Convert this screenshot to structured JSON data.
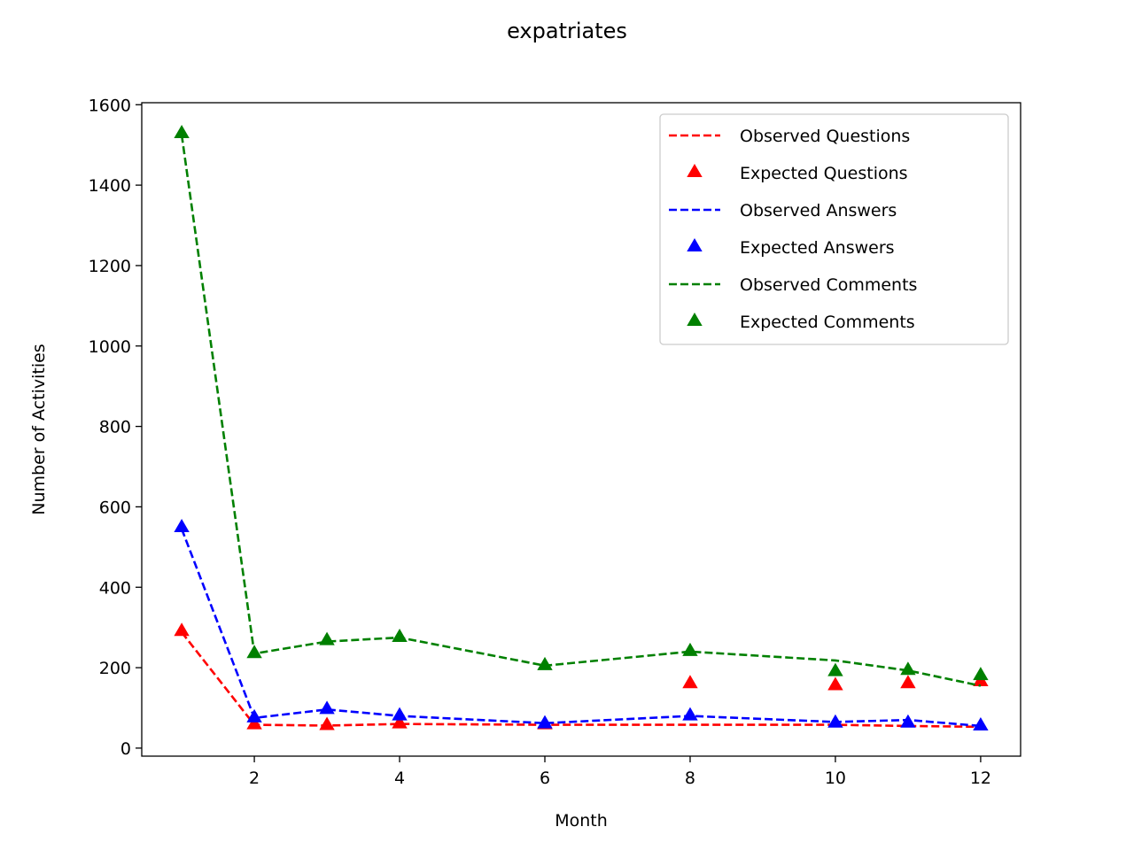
{
  "chart_data": {
    "type": "line",
    "title": "expatriates",
    "xlabel": "Month",
    "ylabel": "Number of Activities",
    "xlim": [
      0.45,
      12.55
    ],
    "ylim": [
      -20,
      1605
    ],
    "xticks": [
      2,
      4,
      6,
      8,
      10,
      12
    ],
    "yticks": [
      0,
      200,
      400,
      600,
      800,
      1000,
      1200,
      1400,
      1600
    ],
    "grid": false,
    "legend_position": "top-right",
    "x": [
      1,
      2,
      3,
      4,
      6,
      8,
      10,
      11,
      12
    ],
    "series": [
      {
        "name": "Observed Questions",
        "kind": "dashed-line",
        "color": "#ff0000",
        "values": [
          288,
          58,
          56,
          60,
          58,
          58,
          58,
          55,
          53
        ]
      },
      {
        "name": "Expected Questions",
        "kind": "triangle-markers",
        "color": "#ff0000",
        "values": [
          290,
          58,
          56,
          60,
          58,
          160,
          155,
          160,
          165
        ]
      },
      {
        "name": "Observed Answers",
        "kind": "dashed-line",
        "color": "#0000ff",
        "values": [
          545,
          75,
          96,
          80,
          62,
          80,
          65,
          70,
          55
        ]
      },
      {
        "name": "Expected Answers",
        "kind": "triangle-markers",
        "color": "#0000ff",
        "values": [
          548,
          75,
          96,
          80,
          60,
          80,
          62,
          62,
          55
        ]
      },
      {
        "name": "Observed Comments",
        "kind": "dashed-line",
        "color": "#008000",
        "values": [
          1525,
          235,
          265,
          275,
          205,
          240,
          218,
          193,
          155
        ]
      },
      {
        "name": "Expected Comments",
        "kind": "triangle-markers",
        "color": "#008000",
        "values": [
          1528,
          235,
          267,
          275,
          205,
          240,
          190,
          193,
          180
        ]
      }
    ]
  }
}
